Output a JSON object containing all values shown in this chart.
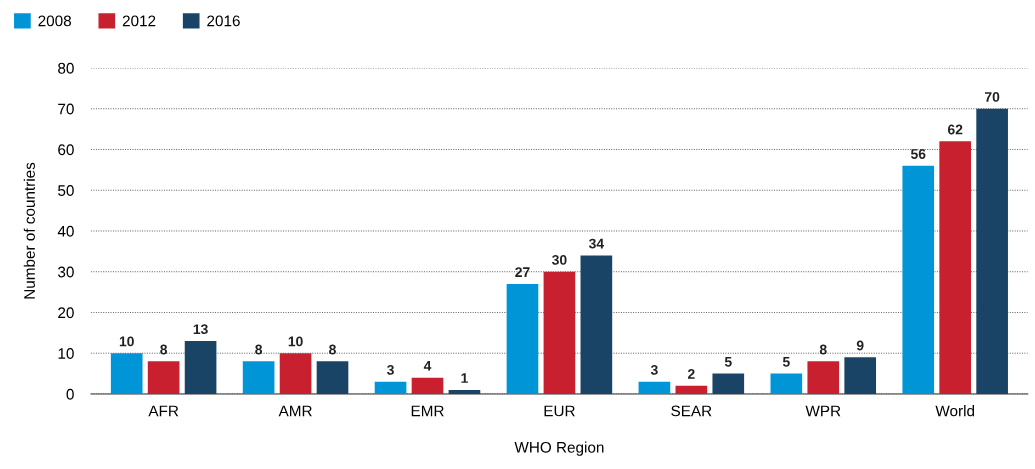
{
  "chart_data": {
    "type": "bar",
    "xlabel": "WHO Region",
    "ylabel": "Number of countries",
    "categories": [
      "AFR",
      "AMR",
      "EMR",
      "EUR",
      "SEAR",
      "WPR",
      "World"
    ],
    "series": [
      {
        "name": "2008",
        "color": "#0095d6",
        "values": [
          10,
          8,
          3,
          27,
          3,
          5,
          56
        ]
      },
      {
        "name": "2012",
        "color": "#c8202f",
        "values": [
          8,
          10,
          4,
          30,
          2,
          8,
          62
        ]
      },
      {
        "name": "2016",
        "color": "#1a4466",
        "values": [
          13,
          8,
          1,
          34,
          5,
          9,
          70
        ]
      }
    ],
    "ylim": [
      0,
      80
    ],
    "yticks": [
      0,
      10,
      20,
      30,
      40,
      50,
      60,
      70,
      80
    ],
    "grid": "y",
    "legend": "top left",
    "data_labels": true
  }
}
